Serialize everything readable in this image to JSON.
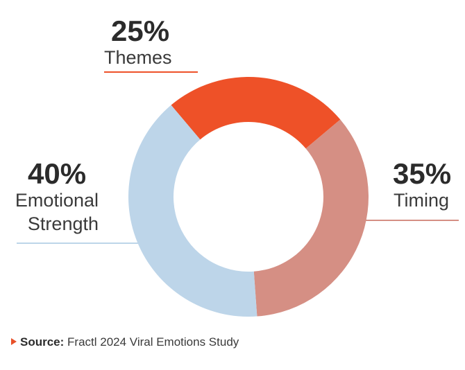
{
  "chart_data": {
    "type": "pie",
    "donut": true,
    "unit": "%",
    "categories": [
      "Themes",
      "Timing",
      "Emotional Strength"
    ],
    "values": [
      25,
      35,
      40
    ],
    "value_labels": [
      "25%",
      "35%",
      "40%"
    ],
    "labels": [
      "Themes",
      "Timing",
      "Emotional\nStrength"
    ],
    "colors": [
      "#ee5128",
      "#d58f84",
      "#bdd5e9"
    ],
    "legend": "none"
  },
  "source": {
    "prefix": "Source:",
    "text": "Fractl 2024 Viral Emotions Study"
  }
}
